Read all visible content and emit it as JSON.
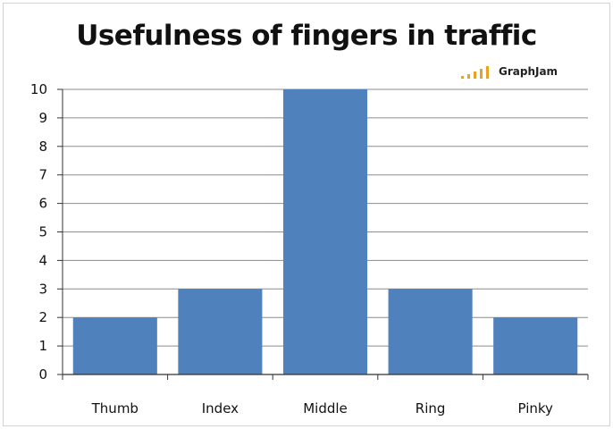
{
  "brand": {
    "name": "GraphJam",
    "logo_color": "#e8a420"
  },
  "chart_data": {
    "type": "bar",
    "title": "Usefulness of fingers in traffic",
    "categories": [
      "Thumb",
      "Index",
      "Middle",
      "Ring",
      "Pinky"
    ],
    "values": [
      2,
      3,
      10,
      3,
      2
    ],
    "xlabel": "",
    "ylabel": "",
    "ylim": [
      0,
      10
    ],
    "yticks": [
      "0",
      "1",
      "2",
      "3",
      "4",
      "5",
      "6",
      "7",
      "8",
      "9",
      "10"
    ],
    "grid": true,
    "legend": "none",
    "bar_color": "#4f81bd",
    "grid_color": "#8c8c8c"
  }
}
